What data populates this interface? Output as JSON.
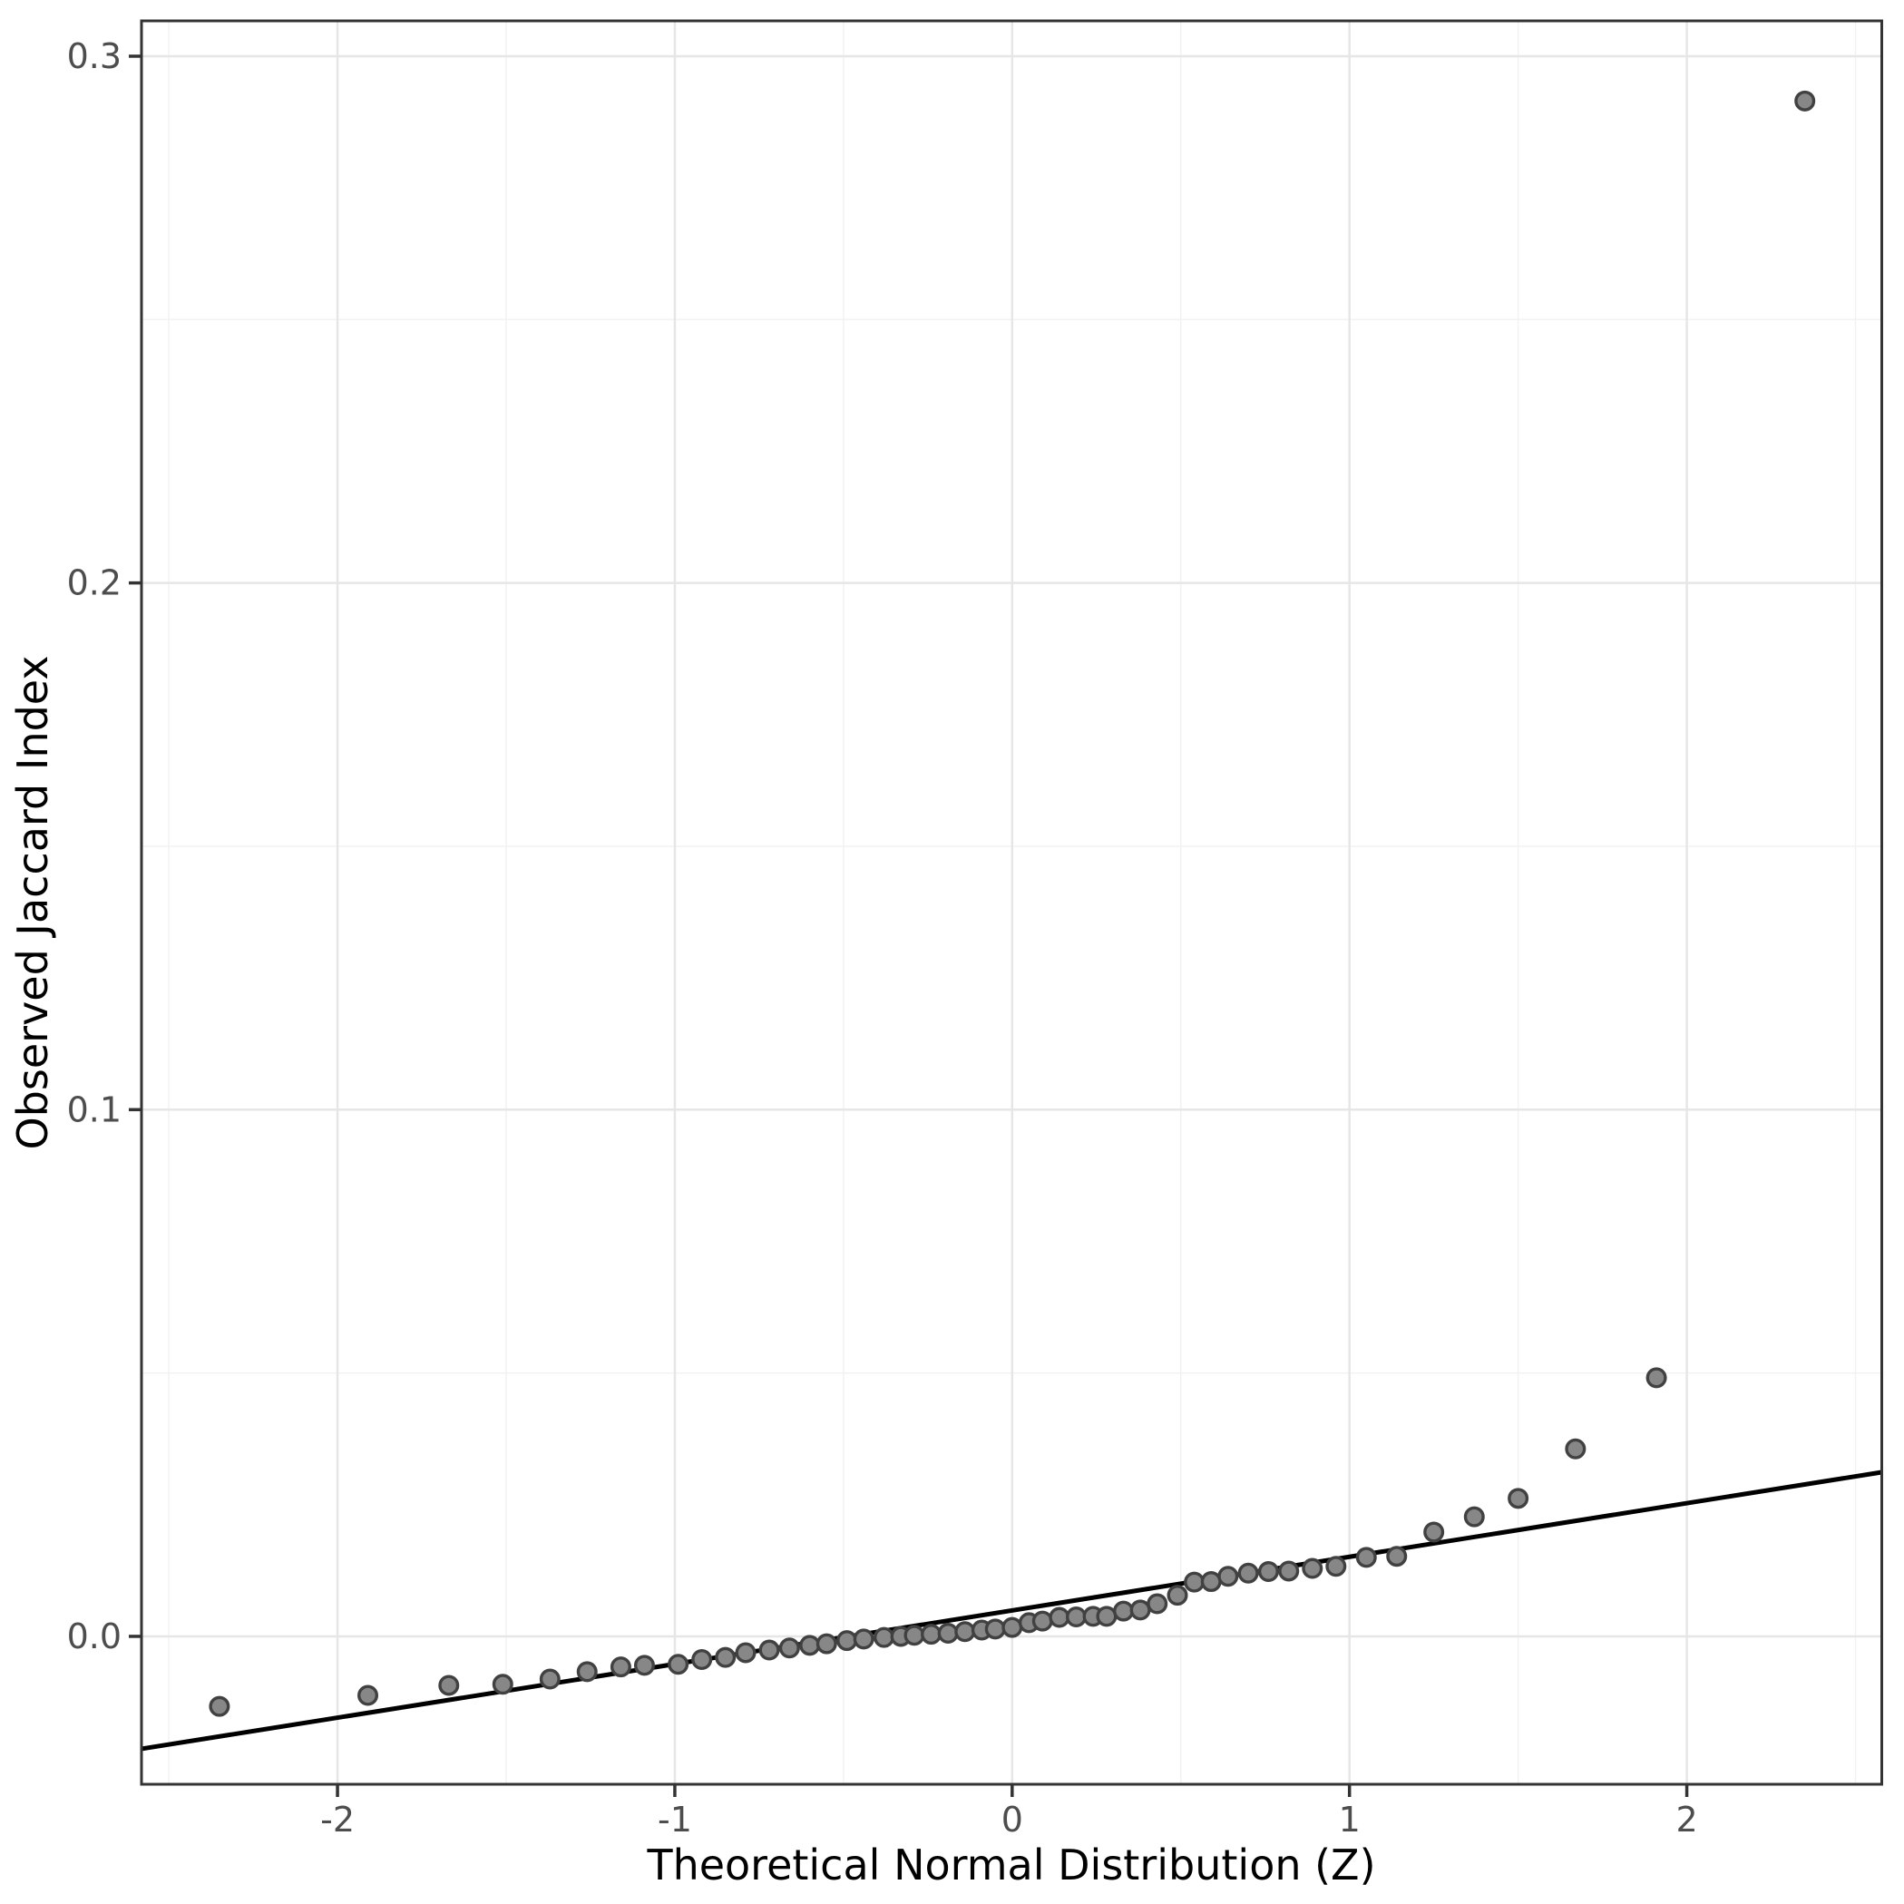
{
  "figure": {
    "background": "#ffffff"
  },
  "chart_data": {
    "type": "scatter",
    "title": "",
    "xlabel": "Theoretical Normal Distribution (Z)",
    "ylabel": "Observed Jaccard Index",
    "x_ticks": [
      -2,
      -1,
      0,
      1,
      2
    ],
    "x_tick_labels": [
      "-2",
      "-1",
      "0",
      "1",
      "2"
    ],
    "y_ticks": [
      0.0,
      0.1,
      0.2,
      0.3
    ],
    "y_tick_labels": [
      "0.0",
      "0.1",
      "0.2",
      "0.3"
    ],
    "x_minor_ticks": [
      -2.5,
      -1.5,
      -0.5,
      0.5,
      1.5,
      2.5
    ],
    "y_minor_ticks": [
      0.05,
      0.15,
      0.25
    ],
    "xlim": [
      -2.581,
      2.578
    ],
    "ylim": [
      -0.02808,
      0.30671
    ],
    "grid": "major+minor",
    "legend": "none",
    "points": [
      [
        -2.35,
        -0.0133
      ],
      [
        -1.91,
        -0.0112
      ],
      [
        -1.67,
        -0.0093
      ],
      [
        -1.51,
        -0.0091
      ],
      [
        -1.37,
        -0.0081
      ],
      [
        -1.26,
        -0.0067
      ],
      [
        -1.16,
        -0.0058
      ],
      [
        -1.09,
        -0.0055
      ],
      [
        -0.99,
        -0.0053
      ],
      [
        -0.92,
        -0.0044
      ],
      [
        -0.85,
        -0.004
      ],
      [
        -0.79,
        -0.0031
      ],
      [
        -0.72,
        -0.0026
      ],
      [
        -0.66,
        -0.0022
      ],
      [
        -0.6,
        -0.0017
      ],
      [
        -0.55,
        -0.0014
      ],
      [
        -0.49,
        -0.0008
      ],
      [
        -0.44,
        -0.0005
      ],
      [
        -0.38,
        -0.0002
      ],
      [
        -0.33,
        0.0
      ],
      [
        -0.29,
        0.0002
      ],
      [
        -0.24,
        0.0004
      ],
      [
        -0.19,
        0.0006
      ],
      [
        -0.14,
        0.0009
      ],
      [
        -0.09,
        0.0012
      ],
      [
        -0.05,
        0.0014
      ],
      [
        0.0,
        0.0017
      ],
      [
        0.05,
        0.0026
      ],
      [
        0.09,
        0.0029
      ],
      [
        0.14,
        0.0036
      ],
      [
        0.19,
        0.0037
      ],
      [
        0.24,
        0.0038
      ],
      [
        0.28,
        0.0038
      ],
      [
        0.33,
        0.0048
      ],
      [
        0.38,
        0.005
      ],
      [
        0.43,
        0.0062
      ],
      [
        0.49,
        0.0078
      ],
      [
        0.54,
        0.0103
      ],
      [
        0.59,
        0.0104
      ],
      [
        0.64,
        0.0114
      ],
      [
        0.7,
        0.012
      ],
      [
        0.76,
        0.0123
      ],
      [
        0.82,
        0.0124
      ],
      [
        0.89,
        0.0129
      ],
      [
        0.96,
        0.0133
      ],
      [
        1.05,
        0.015
      ],
      [
        1.14,
        0.0152
      ],
      [
        1.25,
        0.0198
      ],
      [
        1.37,
        0.0227
      ],
      [
        1.5,
        0.0262
      ],
      [
        1.67,
        0.0356
      ],
      [
        1.91,
        0.0491
      ],
      [
        2.35,
        0.2915
      ]
    ],
    "reference_line": {
      "slope": 0.01018,
      "intercept": 0.00492
    },
    "point_radius_px": 9.8,
    "colors": {
      "point_fill": "#878787",
      "point_stroke": "#414141",
      "reference_line": "#000000",
      "grid_major": "#e6e6e6",
      "grid_minor": "#f2f2f2",
      "panel_border": "#333333",
      "tick_mark": "#333333",
      "tick_label": "#4d4d4d",
      "axis_title": "#000000",
      "panel_background": "#ffffff"
    }
  }
}
